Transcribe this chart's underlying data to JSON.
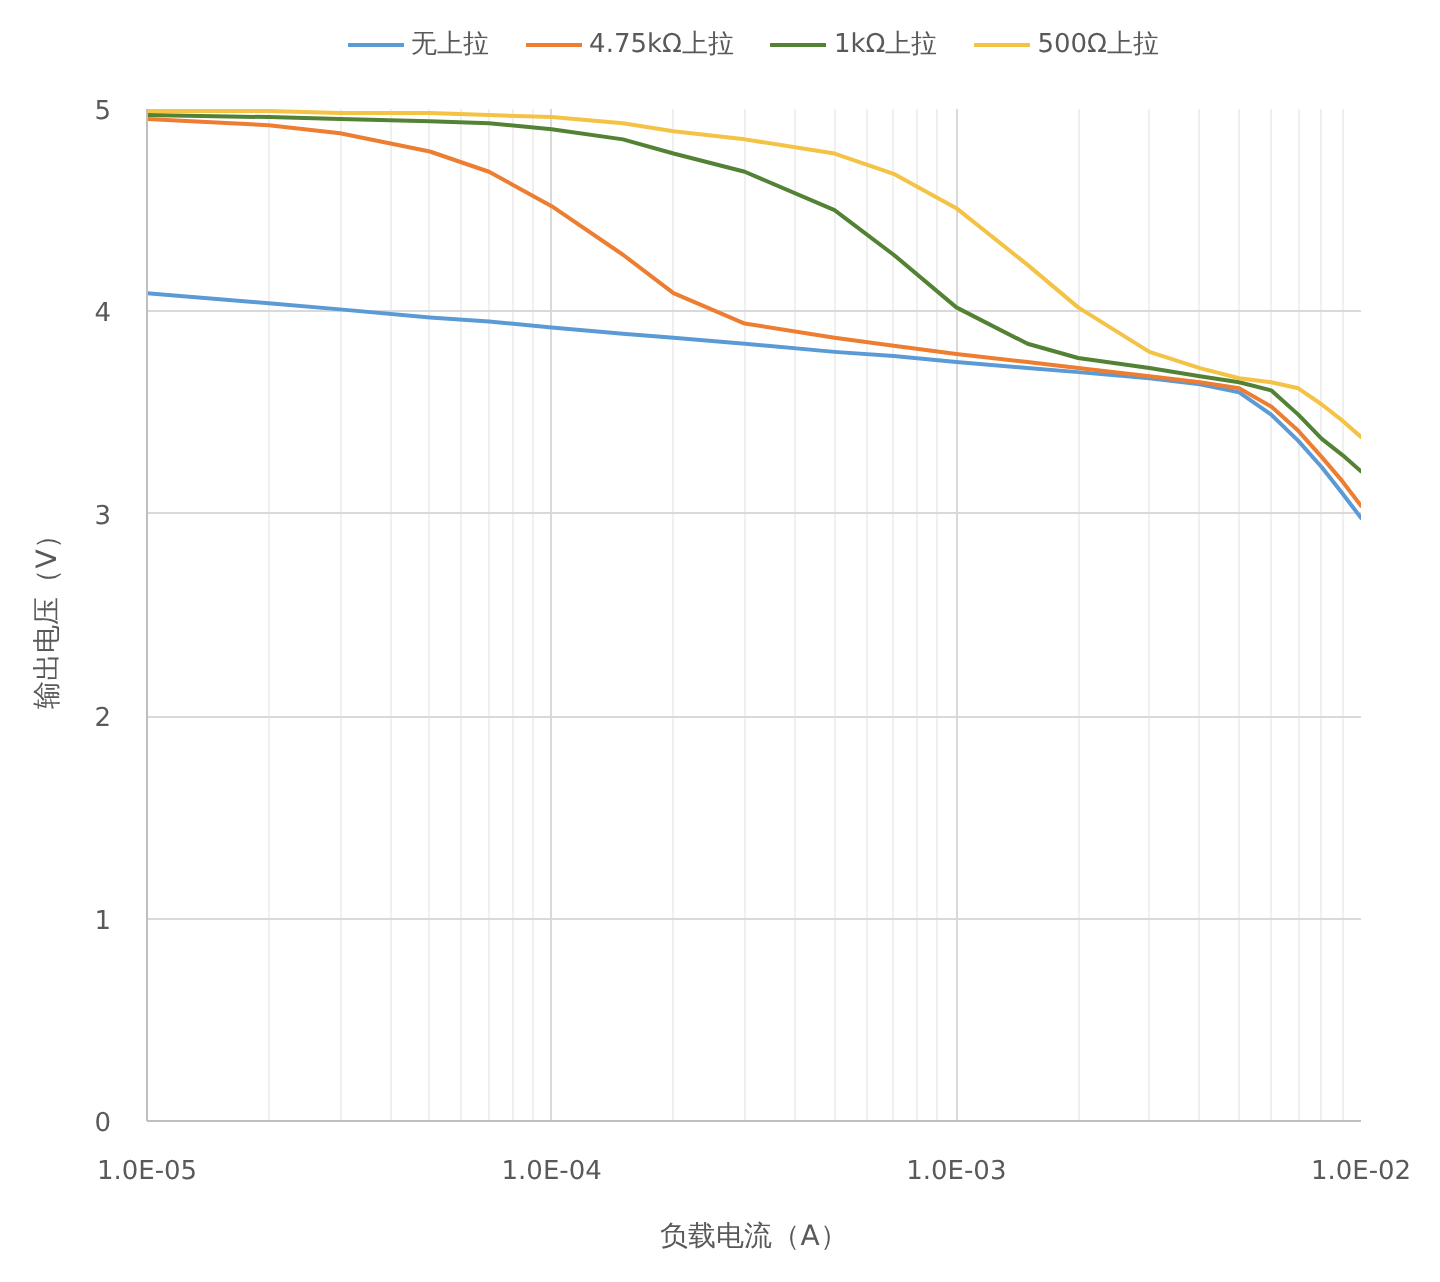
{
  "chart_data": {
    "type": "line",
    "xlabel": "负载电流（A）",
    "ylabel": "输出电压（V）",
    "x": [
      1e-05,
      2e-05,
      3e-05,
      5e-05,
      7e-05,
      0.0001,
      0.00015,
      0.0002,
      0.0003,
      0.0005,
      0.0007,
      0.001,
      0.0015,
      0.002,
      0.003,
      0.004,
      0.005,
      0.006,
      0.007,
      0.008,
      0.009,
      0.01
    ],
    "series": [
      {
        "name": "无上拉",
        "color": "#5b9bd5",
        "values": [
          4.09,
          4.04,
          4.01,
          3.97,
          3.95,
          3.92,
          3.89,
          3.87,
          3.84,
          3.8,
          3.78,
          3.75,
          3.72,
          3.7,
          3.67,
          3.64,
          3.6,
          3.49,
          3.36,
          3.23,
          3.1,
          2.98
        ]
      },
      {
        "name": "4.75kΩ上拉",
        "color": "#ed7d31",
        "values": [
          4.95,
          4.92,
          4.88,
          4.79,
          4.69,
          4.52,
          4.28,
          4.09,
          3.94,
          3.87,
          3.83,
          3.79,
          3.75,
          3.72,
          3.68,
          3.65,
          3.62,
          3.53,
          3.41,
          3.28,
          3.16,
          3.04
        ]
      },
      {
        "name": "1kΩ上拉",
        "color": "#548235",
        "values": [
          4.97,
          4.96,
          4.95,
          4.94,
          4.93,
          4.9,
          4.85,
          4.78,
          4.69,
          4.5,
          4.28,
          4.02,
          3.84,
          3.77,
          3.72,
          3.68,
          3.65,
          3.61,
          3.49,
          3.37,
          3.29,
          3.21
        ]
      },
      {
        "name": "500Ω上拉",
        "color": "#f4c245",
        "values": [
          4.99,
          4.99,
          4.98,
          4.98,
          4.97,
          4.96,
          4.93,
          4.89,
          4.85,
          4.78,
          4.68,
          4.51,
          4.23,
          4.02,
          3.8,
          3.72,
          3.67,
          3.65,
          3.62,
          3.54,
          3.46,
          3.38
        ]
      }
    ],
    "xlim": [
      1e-05,
      0.01
    ],
    "ylim": [
      0,
      5
    ],
    "xticks": [
      {
        "value": 1e-05,
        "label": "1.0E-05"
      },
      {
        "value": 0.0001,
        "label": "1.0E-04"
      },
      {
        "value": 0.001,
        "label": "1.0E-03"
      },
      {
        "value": 0.01,
        "label": "1.0E-02"
      }
    ],
    "yticks": [
      0,
      1,
      2,
      3,
      4,
      5
    ],
    "log": "x",
    "grid": true,
    "legend": "top",
    "line_style": "solid"
  }
}
